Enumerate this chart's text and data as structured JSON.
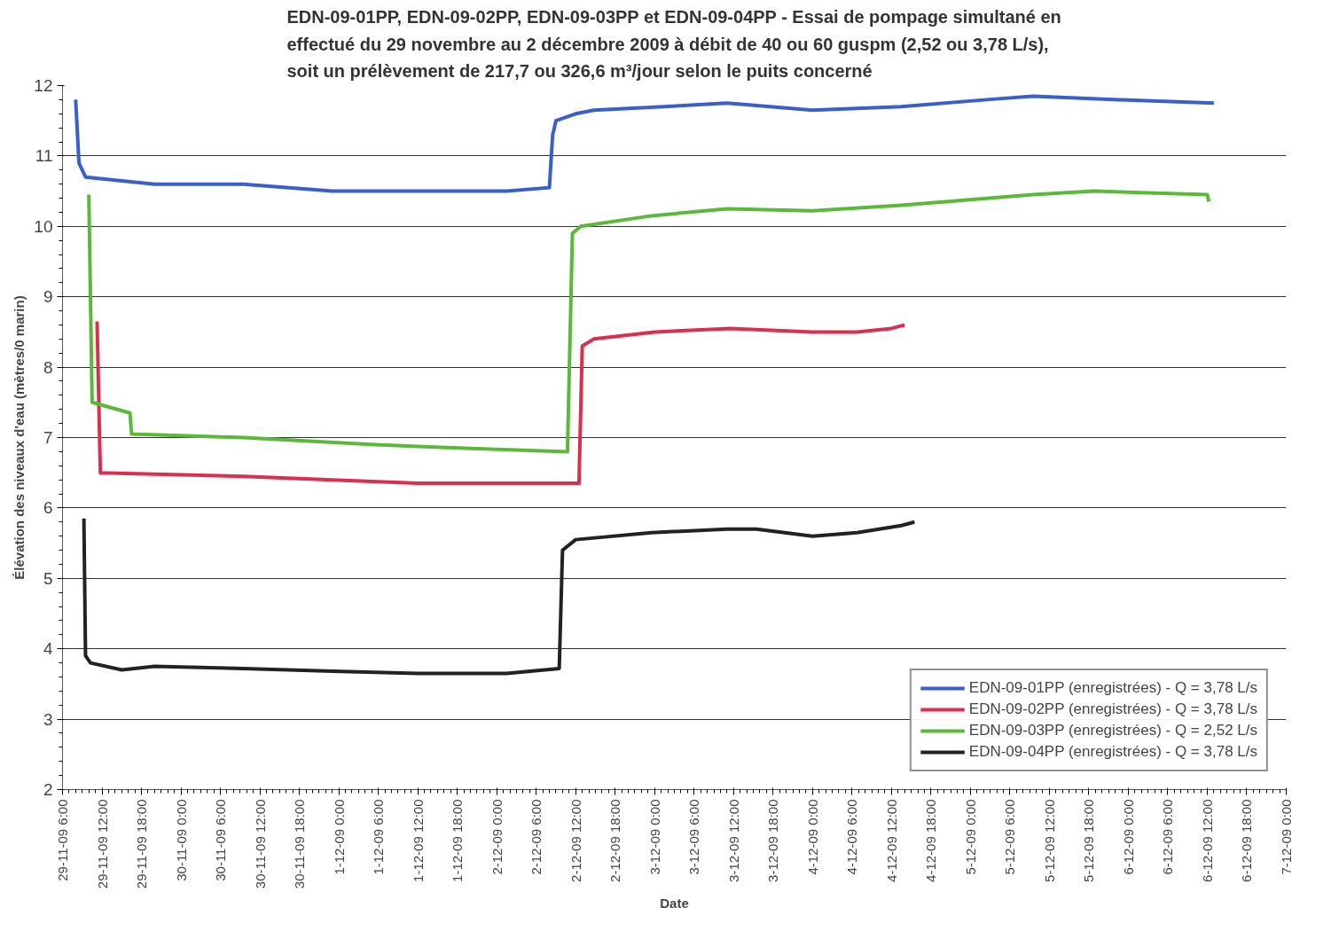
{
  "chart_data": {
    "type": "line",
    "title": "EDN-09-01PP, EDN-09-02PP, EDN-09-03PP et EDN-09-04PP - Essai de pompage simultané en\neffectué du 29 novembre au 2 décembre 2009 à débit de 40 ou 60 guspm (2,52 ou 3,78 L/s),\nsoit un prélèvement de 217,7 ou 326,6 m³/jour selon le puits concerné",
    "xlabel": "Date",
    "ylabel": "Élévation des niveaux d'eau (mètres/0 marin)",
    "xlim": [
      "2009-11-29T06:00",
      "2009-12-07T00:00"
    ],
    "xticks": [
      {
        "value": "2009-11-29T06:00",
        "label": "29-11-09 6:00"
      },
      {
        "value": "2009-11-29T12:00",
        "label": "29-11-09 12:00"
      },
      {
        "value": "2009-11-29T18:00",
        "label": "29-11-09 18:00"
      },
      {
        "value": "2009-11-30T00:00",
        "label": "30-11-09 0:00"
      },
      {
        "value": "2009-11-30T06:00",
        "label": "30-11-09 6:00"
      },
      {
        "value": "2009-11-30T12:00",
        "label": "30-11-09 12:00"
      },
      {
        "value": "2009-11-30T18:00",
        "label": "30-11-09 18:00"
      },
      {
        "value": "2009-12-01T00:00",
        "label": "1-12-09 0:00"
      },
      {
        "value": "2009-12-01T06:00",
        "label": "1-12-09 6:00"
      },
      {
        "value": "2009-12-01T12:00",
        "label": "1-12-09 12:00"
      },
      {
        "value": "2009-12-01T18:00",
        "label": "1-12-09 18:00"
      },
      {
        "value": "2009-12-02T00:00",
        "label": "2-12-09 0:00"
      },
      {
        "value": "2009-12-02T06:00",
        "label": "2-12-09 6:00"
      },
      {
        "value": "2009-12-02T12:00",
        "label": "2-12-09 12:00"
      },
      {
        "value": "2009-12-02T18:00",
        "label": "2-12-09 18:00"
      },
      {
        "value": "2009-12-03T00:00",
        "label": "3-12-09 0:00"
      },
      {
        "value": "2009-12-03T06:00",
        "label": "3-12-09 6:00"
      },
      {
        "value": "2009-12-03T12:00",
        "label": "3-12-09 12:00"
      },
      {
        "value": "2009-12-03T18:00",
        "label": "3-12-09 18:00"
      },
      {
        "value": "2009-12-04T00:00",
        "label": "4-12-09 0:00"
      },
      {
        "value": "2009-12-04T06:00",
        "label": "4-12-09 6:00"
      },
      {
        "value": "2009-12-04T12:00",
        "label": "4-12-09 12:00"
      },
      {
        "value": "2009-12-04T18:00",
        "label": "4-12-09 18:00"
      },
      {
        "value": "2009-12-05T00:00",
        "label": "5-12-09 0:00"
      },
      {
        "value": "2009-12-05T06:00",
        "label": "5-12-09 6:00"
      },
      {
        "value": "2009-12-05T12:00",
        "label": "5-12-09 12:00"
      },
      {
        "value": "2009-12-05T18:00",
        "label": "5-12-09 18:00"
      },
      {
        "value": "2009-12-06T00:00",
        "label": "6-12-09 0:00"
      },
      {
        "value": "2009-12-06T06:00",
        "label": "6-12-09 6:00"
      },
      {
        "value": "2009-12-06T12:00",
        "label": "6-12-09 12:00"
      },
      {
        "value": "2009-12-06T18:00",
        "label": "6-12-09 18:00"
      },
      {
        "value": "2009-12-07T00:00",
        "label": "7-12-09 0:00"
      }
    ],
    "ylim": [
      2,
      12
    ],
    "yticks": [
      2,
      3,
      4,
      5,
      6,
      7,
      8,
      9,
      10,
      11,
      12
    ],
    "grid": "y",
    "legend": "bottom right",
    "marker": "none",
    "line_style": "solid",
    "series": [
      {
        "name": "EDN-09-01PP (enregistrées) - Q = 3,78 L/s",
        "color": "#3a5fcd",
        "x": [
          "2009-11-29T08:00",
          "2009-11-29T08:30",
          "2009-11-29T09:30",
          "2009-11-29T20:00",
          "2009-11-30T09:30",
          "2009-11-30T23:00",
          "2009-12-01T12:00",
          "2009-12-02T01:30",
          "2009-12-02T08:00",
          "2009-12-02T08:30",
          "2009-12-02T09:00",
          "2009-12-02T12:00",
          "2009-12-02T14:45",
          "2009-12-03T01:30",
          "2009-12-03T11:00",
          "2009-12-04T00:00",
          "2009-12-04T13:30",
          "2009-12-05T02:30",
          "2009-12-05T09:30",
          "2009-12-05T22:30",
          "2009-12-06T13:00"
        ],
        "values": [
          11.8,
          10.9,
          10.7,
          10.6,
          10.6,
          10.5,
          10.5,
          10.5,
          10.55,
          11.3,
          11.5,
          11.6,
          11.65,
          11.7,
          11.75,
          11.65,
          11.7,
          11.8,
          11.85,
          11.8,
          11.75
        ]
      },
      {
        "name": "EDN-09-02PP (enregistrées) - Q = 3,78 L/s",
        "color": "#d9304f",
        "x": [
          "2009-11-29T11:15",
          "2009-11-29T11:45",
          "2009-11-30T09:30",
          "2009-11-30T23:00",
          "2009-12-01T12:00",
          "2009-12-02T12:30",
          "2009-12-02T13:00",
          "2009-12-02T14:45",
          "2009-12-03T00:00",
          "2009-12-03T11:30",
          "2009-12-04T00:00",
          "2009-12-04T06:45",
          "2009-12-04T12:00",
          "2009-12-04T14:00"
        ],
        "values": [
          8.65,
          6.5,
          6.45,
          6.4,
          6.35,
          6.35,
          8.3,
          8.4,
          8.5,
          8.55,
          8.5,
          8.5,
          8.55,
          8.6
        ]
      },
      {
        "name": "EDN-09-03PP (enregistrées) - Q = 2,52 L/s",
        "color": "#5cb83a",
        "x": [
          "2009-11-29T10:00",
          "2009-11-29T10:30",
          "2009-11-29T16:15",
          "2009-11-29T16:30",
          "2009-11-30T09:30",
          "2009-12-01T05:30",
          "2009-12-01T19:00",
          "2009-12-02T10:45",
          "2009-12-02T11:30",
          "2009-12-02T12:45",
          "2009-12-02T23:30",
          "2009-12-03T11:00",
          "2009-12-04T00:00",
          "2009-12-04T13:30",
          "2009-12-05T09:30",
          "2009-12-05T18:45",
          "2009-12-06T12:00",
          "2009-12-06T12:15"
        ],
        "values": [
          10.45,
          7.5,
          7.35,
          7.05,
          7.0,
          6.9,
          6.85,
          6.8,
          9.9,
          10.0,
          10.15,
          10.25,
          10.22,
          10.3,
          10.45,
          10.5,
          10.45,
          10.35
        ]
      },
      {
        "name": "EDN-09-04PP (enregistrées) - Q = 3,78 L/s",
        "color": "#222222",
        "x": [
          "2009-11-29T09:15",
          "2009-11-29T09:30",
          "2009-11-29T10:15",
          "2009-11-29T15:00",
          "2009-11-29T20:00",
          "2009-11-30T09:30",
          "2009-11-30T23:00",
          "2009-12-01T12:00",
          "2009-12-02T01:30",
          "2009-12-02T09:30",
          "2009-12-02T10:00",
          "2009-12-02T12:00",
          "2009-12-02T23:30",
          "2009-12-03T11:00",
          "2009-12-03T15:30",
          "2009-12-04T00:00",
          "2009-12-04T06:45",
          "2009-12-04T13:30",
          "2009-12-04T15:30"
        ],
        "values": [
          5.85,
          3.9,
          3.8,
          3.7,
          3.75,
          3.72,
          3.68,
          3.65,
          3.65,
          3.72,
          5.4,
          5.55,
          5.65,
          5.7,
          5.7,
          5.6,
          5.65,
          5.75,
          5.8
        ]
      }
    ]
  }
}
